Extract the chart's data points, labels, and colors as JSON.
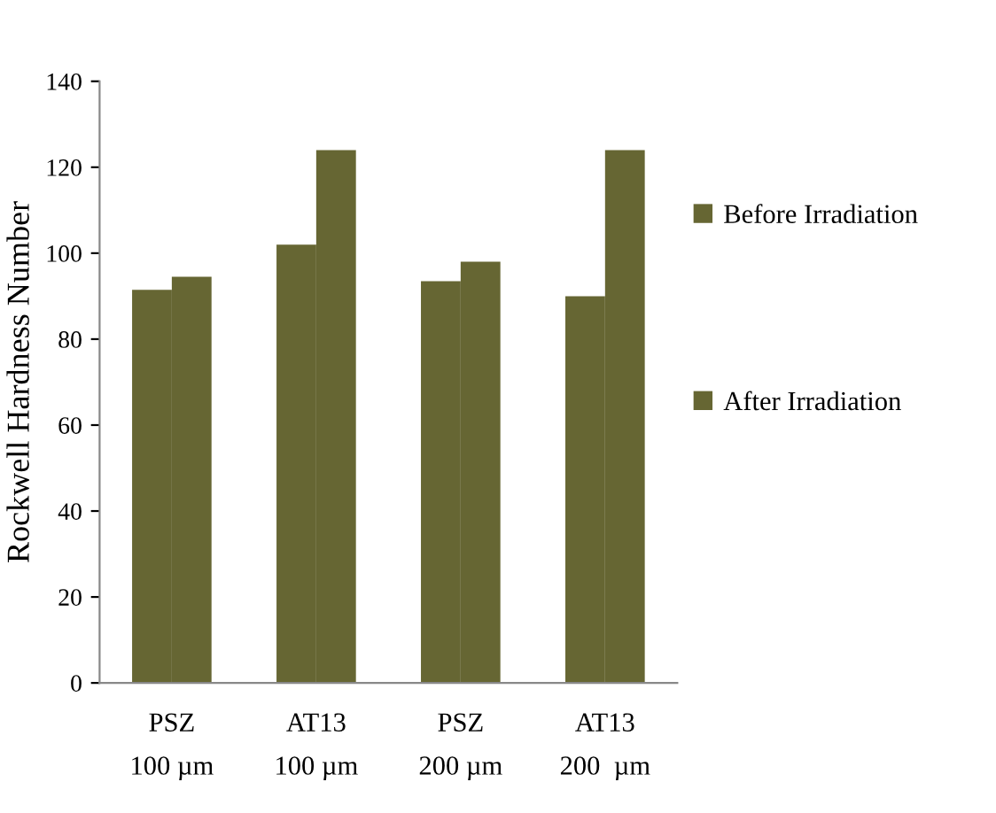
{
  "chart_data": {
    "type": "bar",
    "ylabel": "Rockwell Hardness Number",
    "categories": [
      "PSZ\n100 µm",
      "AT13\n100 µm",
      "PSZ\n200 µm",
      "AT13\n200  µm"
    ],
    "series": [
      {
        "name": "Before Irradiation",
        "color": "#666633",
        "values": [
          91.5,
          102,
          93.5,
          90
        ]
      },
      {
        "name": "After Irradiation",
        "color": "#666633",
        "values": [
          94.5,
          124,
          98,
          124
        ]
      }
    ],
    "ylim": [
      0,
      140
    ],
    "yticks": [
      0,
      20,
      40,
      60,
      80,
      100,
      120,
      140
    ],
    "grid": false,
    "legend": "right"
  }
}
